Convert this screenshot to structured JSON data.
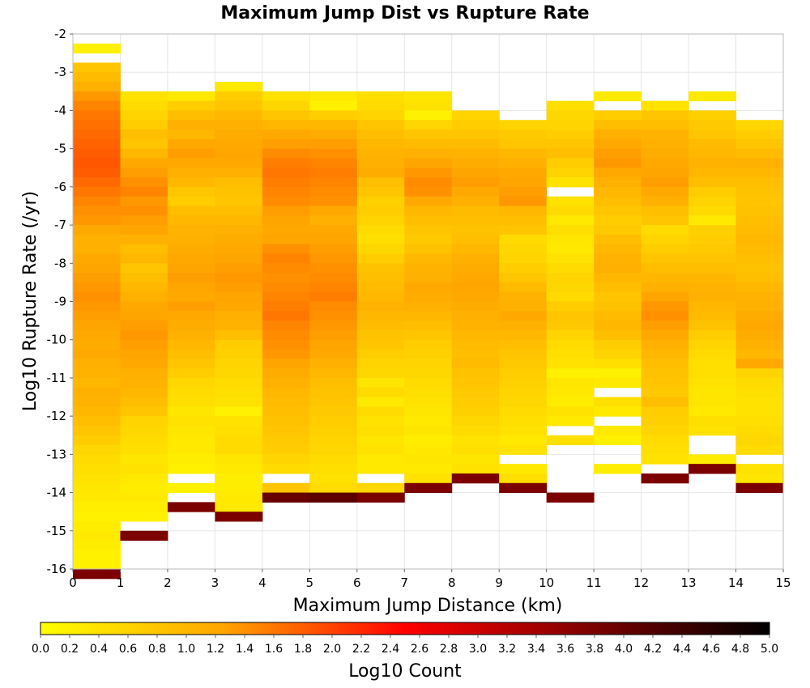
{
  "chart_data": {
    "type": "heatmap",
    "title": "Maximum Jump Dist vs Rupture Rate",
    "xlabel": "Maximum Jump Distance (km)",
    "ylabel": "Log10 Rupture Rate (/yr)",
    "colorbar_label": "Log10 Count",
    "xlim": [
      0,
      15
    ],
    "ylim": [
      -16,
      -2
    ],
    "x_ticks": [
      0,
      1,
      2,
      3,
      4,
      5,
      6,
      7,
      8,
      9,
      10,
      11,
      12,
      13,
      14,
      15
    ],
    "y_ticks": [
      -2,
      -3,
      -4,
      -5,
      -6,
      -7,
      -8,
      -9,
      -10,
      -11,
      -12,
      -13,
      -14,
      -15,
      -16
    ],
    "colorbar_range": [
      0,
      5
    ],
    "colorbar_ticks": [
      "0.0",
      "0.2",
      "0.4",
      "0.6",
      "0.8",
      "1.0",
      "1.2",
      "1.4",
      "1.6",
      "1.8",
      "2.0",
      "2.2",
      "2.4",
      "2.6",
      "2.8",
      "3.0",
      "3.2",
      "3.4",
      "3.6",
      "3.8",
      "4.0",
      "4.2",
      "4.4",
      "4.6",
      "4.8",
      "5.0"
    ],
    "colormap": [
      "#ffff00",
      "#ffa500",
      "#ff0000",
      "#800000",
      "#000000"
    ],
    "x_bin_width": 1,
    "y_bin_height": 0.25,
    "grid": true,
    "columns": [
      {
        "x_start": 0,
        "y_top": -2.25,
        "values": [
          0.2,
          -1,
          0.8,
          0.95,
          1.1,
          1.35,
          1.5,
          1.6,
          1.65,
          1.7,
          1.75,
          1.8,
          1.85,
          1.8,
          1.7,
          1.6,
          1.5,
          1.4,
          1.35,
          1.2,
          1.1,
          1.1,
          1.2,
          1.25,
          1.3,
          1.35,
          1.4,
          1.35,
          1.3,
          1.25,
          1.2,
          1.15,
          1.2,
          1.1,
          1.05,
          1.0,
          1.1,
          1.05,
          1.0,
          0.9,
          0.8,
          0.7,
          0.55,
          0.5,
          0.45,
          0.4,
          0.35,
          0.3,
          0.25,
          0.2,
          0.25,
          0.3,
          0.25,
          0.2,
          0.2,
          3.8
        ]
      },
      {
        "x_start": 1,
        "y_top": -3.5,
        "values": [
          0.4,
          0.5,
          0.6,
          0.7,
          0.9,
          0.8,
          1.0,
          1.2,
          1.3,
          1.4,
          1.5,
          1.35,
          1.4,
          1.3,
          1.25,
          1.1,
          0.9,
          1.0,
          0.8,
          0.9,
          1.0,
          1.1,
          1.2,
          1.25,
          1.3,
          1.35,
          1.3,
          1.25,
          1.2,
          1.1,
          1.05,
          1.0,
          0.9,
          0.8,
          0.6,
          0.55,
          0.5,
          0.45,
          0.35,
          0.4,
          0.3,
          0.25,
          0.3,
          0.25,
          0.2,
          -1,
          3.8
        ]
      },
      {
        "x_start": 2,
        "y_top": -3.5,
        "values": [
          0.3,
          0.7,
          0.9,
          1.1,
          1.0,
          1.2,
          1.3,
          1.2,
          1.1,
          1.0,
          0.8,
          0.7,
          0.9,
          1.0,
          1.05,
          1.1,
          1.15,
          1.2,
          1.25,
          1.3,
          1.25,
          1.2,
          1.3,
          1.2,
          1.15,
          1.1,
          1.0,
          0.9,
          0.8,
          0.7,
          0.55,
          0.5,
          0.45,
          0.35,
          0.4,
          0.35,
          0.3,
          0.3,
          0.25,
          0.2,
          -1,
          0.2,
          -1,
          3.8
        ]
      },
      {
        "x_start": 3,
        "y_top": -3.25,
        "values": [
          0.3,
          0.7,
          0.8,
          1.0,
          1.1,
          1.15,
          1.2,
          1.25,
          1.2,
          1.1,
          0.9,
          0.85,
          0.8,
          0.9,
          1.0,
          1.1,
          1.15,
          1.2,
          1.25,
          1.3,
          1.35,
          1.3,
          1.25,
          1.2,
          1.1,
          1.05,
          0.9,
          0.7,
          0.65,
          0.6,
          0.55,
          0.5,
          0.45,
          0.4,
          0.2,
          0.4,
          0.45,
          0.5,
          0.5,
          0.35,
          0.3,
          0.25,
          0.25,
          0.3,
          0.3,
          3.8
        ]
      },
      {
        "x_start": 4,
        "y_top": -3.5,
        "values": [
          0.4,
          0.55,
          0.8,
          1.0,
          1.2,
          1.3,
          1.45,
          1.55,
          1.6,
          1.55,
          1.5,
          1.45,
          1.3,
          1.25,
          1.2,
          1.25,
          1.4,
          1.5,
          1.45,
          1.4,
          1.45,
          1.5,
          1.55,
          1.6,
          1.5,
          1.45,
          1.4,
          1.35,
          1.25,
          1.15,
          1.1,
          1.0,
          0.95,
          0.9,
          0.85,
          0.8,
          0.75,
          0.7,
          0.6,
          0.5,
          -1,
          0.8,
          4.0
        ]
      },
      {
        "x_start": 5,
        "y_top": -3.5,
        "values": [
          0.3,
          0.2,
          0.7,
          1.0,
          1.15,
          1.3,
          1.4,
          1.5,
          1.55,
          1.5,
          1.45,
          1.4,
          1.2,
          1.1,
          1.2,
          1.25,
          1.3,
          1.35,
          1.4,
          1.45,
          1.5,
          1.55,
          1.45,
          1.4,
          1.35,
          1.3,
          1.25,
          1.2,
          1.1,
          1.0,
          0.9,
          0.85,
          0.8,
          0.75,
          0.7,
          0.65,
          0.6,
          0.55,
          0.5,
          0.45,
          0.4,
          0.5,
          4.1
        ]
      },
      {
        "x_start": 6,
        "y_top": -3.5,
        "values": [
          0.45,
          0.5,
          0.6,
          0.8,
          0.9,
          1.0,
          1.05,
          1.1,
          1.15,
          0.9,
          0.8,
          0.65,
          0.7,
          0.6,
          0.5,
          0.45,
          0.55,
          0.7,
          0.85,
          0.9,
          0.95,
          1.0,
          1.05,
          1.0,
          0.95,
          0.85,
          0.8,
          0.7,
          0.6,
          0.55,
          0.35,
          0.5,
          0.3,
          0.5,
          0.4,
          0.45,
          0.35,
          0.4,
          0.3,
          0.3,
          -1,
          0.55,
          3.8
        ]
      },
      {
        "x_start": 7,
        "y_top": -3.5,
        "values": [
          0.35,
          0.4,
          0.2,
          0.6,
          0.8,
          0.95,
          1.1,
          1.25,
          1.35,
          1.45,
          1.4,
          1.2,
          1.0,
          0.9,
          0.8,
          0.75,
          0.85,
          1.0,
          1.05,
          1.1,
          1.2,
          1.15,
          1.1,
          1.0,
          0.9,
          0.8,
          0.7,
          0.65,
          0.6,
          0.55,
          0.5,
          0.45,
          0.4,
          0.35,
          0.3,
          0.35,
          0.25,
          0.3,
          0.35,
          0.3,
          0.4,
          3.8
        ]
      },
      {
        "x_start": 8,
        "y_top": -4.0,
        "values": [
          0.6,
          0.7,
          0.8,
          0.95,
          1.05,
          1.15,
          1.25,
          1.3,
          1.2,
          1.1,
          0.95,
          0.9,
          0.85,
          0.9,
          1.0,
          1.1,
          1.15,
          1.2,
          1.25,
          1.2,
          1.15,
          1.1,
          1.05,
          1.0,
          0.95,
          0.9,
          0.95,
          0.85,
          0.8,
          0.75,
          0.7,
          0.65,
          0.55,
          0.5,
          0.4,
          0.45,
          0.35,
          0.4,
          3.8
        ]
      },
      {
        "x_start": 9,
        "y_top": -4.25,
        "values": [
          0.6,
          0.75,
          0.8,
          1.0,
          1.1,
          1.2,
          1.25,
          1.3,
          1.35,
          1.0,
          0.9,
          0.8,
          0.5,
          0.55,
          0.6,
          0.7,
          0.8,
          0.95,
          1.05,
          1.1,
          1.2,
          1.1,
          1.0,
          0.9,
          0.8,
          0.75,
          0.7,
          0.65,
          0.6,
          0.55,
          0.5,
          0.45,
          0.4,
          0.3,
          0.4,
          -1,
          0.3,
          0.45,
          3.8
        ]
      },
      {
        "x_start": 10,
        "y_top": -3.75,
        "values": [
          0.45,
          0.55,
          0.6,
          0.7,
          0.8,
          0.9,
          0.7,
          0.6,
          0.4,
          -1,
          0.4,
          0.5,
          0.3,
          0.45,
          0.35,
          0.3,
          0.4,
          0.5,
          0.6,
          0.55,
          0.5,
          0.7,
          0.8,
          0.75,
          0.6,
          0.5,
          0.45,
          0.4,
          0.2,
          0.35,
          0.3,
          0.25,
          0.4,
          0.3,
          -1,
          0.45,
          -1,
          -1,
          -1,
          -1,
          -1,
          3.8
        ]
      },
      {
        "x_start": 11,
        "y_top": -3.5,
        "values": [
          0.3,
          -1,
          0.7,
          0.9,
          1.1,
          1.2,
          1.3,
          1.35,
          1.2,
          1.1,
          1.0,
          0.9,
          0.8,
          0.7,
          0.75,
          0.9,
          1.0,
          1.05,
          1.1,
          1.0,
          0.9,
          0.8,
          0.85,
          0.95,
          1.0,
          0.9,
          0.7,
          0.6,
          0.45,
          0.2,
          0.3,
          -1,
          0.45,
          0.3,
          -1,
          0.3,
          0.2,
          -1,
          -1,
          0.25
        ]
      },
      {
        "x_start": 12,
        "y_top": -3.75,
        "values": [
          0.4,
          0.8,
          0.9,
          1.05,
          1.1,
          1.15,
          1.2,
          1.25,
          1.3,
          1.2,
          1.1,
          0.9,
          0.8,
          0.5,
          0.6,
          0.7,
          0.8,
          0.9,
          1.0,
          1.1,
          1.25,
          1.35,
          1.4,
          1.3,
          1.2,
          1.1,
          1.0,
          0.9,
          0.85,
          0.8,
          0.75,
          0.9,
          0.7,
          0.65,
          0.6,
          0.5,
          0.45,
          0.4,
          -1,
          3.8
        ]
      },
      {
        "x_start": 13,
        "y_top": -3.5,
        "values": [
          0.3,
          -1,
          0.65,
          0.75,
          0.8,
          0.95,
          1.0,
          1.05,
          1.0,
          0.9,
          0.7,
          0.6,
          0.5,
          0.3,
          0.65,
          0.7,
          0.75,
          0.8,
          0.9,
          1.0,
          1.05,
          1.1,
          1.0,
          0.95,
          0.85,
          0.7,
          0.6,
          0.5,
          0.45,
          0.45,
          0.4,
          0.35,
          0.35,
          0.3,
          0.45,
          0.4,
          -1,
          -1,
          0.25,
          3.8
        ]
      },
      {
        "x_start": 14,
        "y_top": -4.25,
        "values": [
          0.55,
          0.7,
          0.8,
          0.95,
          1.1,
          1.0,
          0.9,
          0.85,
          0.8,
          0.85,
          0.9,
          0.95,
          1.0,
          0.95,
          0.9,
          0.85,
          0.9,
          1.0,
          1.05,
          1.1,
          1.15,
          1.2,
          1.15,
          1.1,
          1.0,
          1.2,
          0.6,
          0.5,
          0.45,
          0.4,
          0.4,
          0.45,
          0.5,
          0.55,
          0.5,
          -1,
          0.4,
          0.35,
          3.8
        ]
      }
    ]
  }
}
